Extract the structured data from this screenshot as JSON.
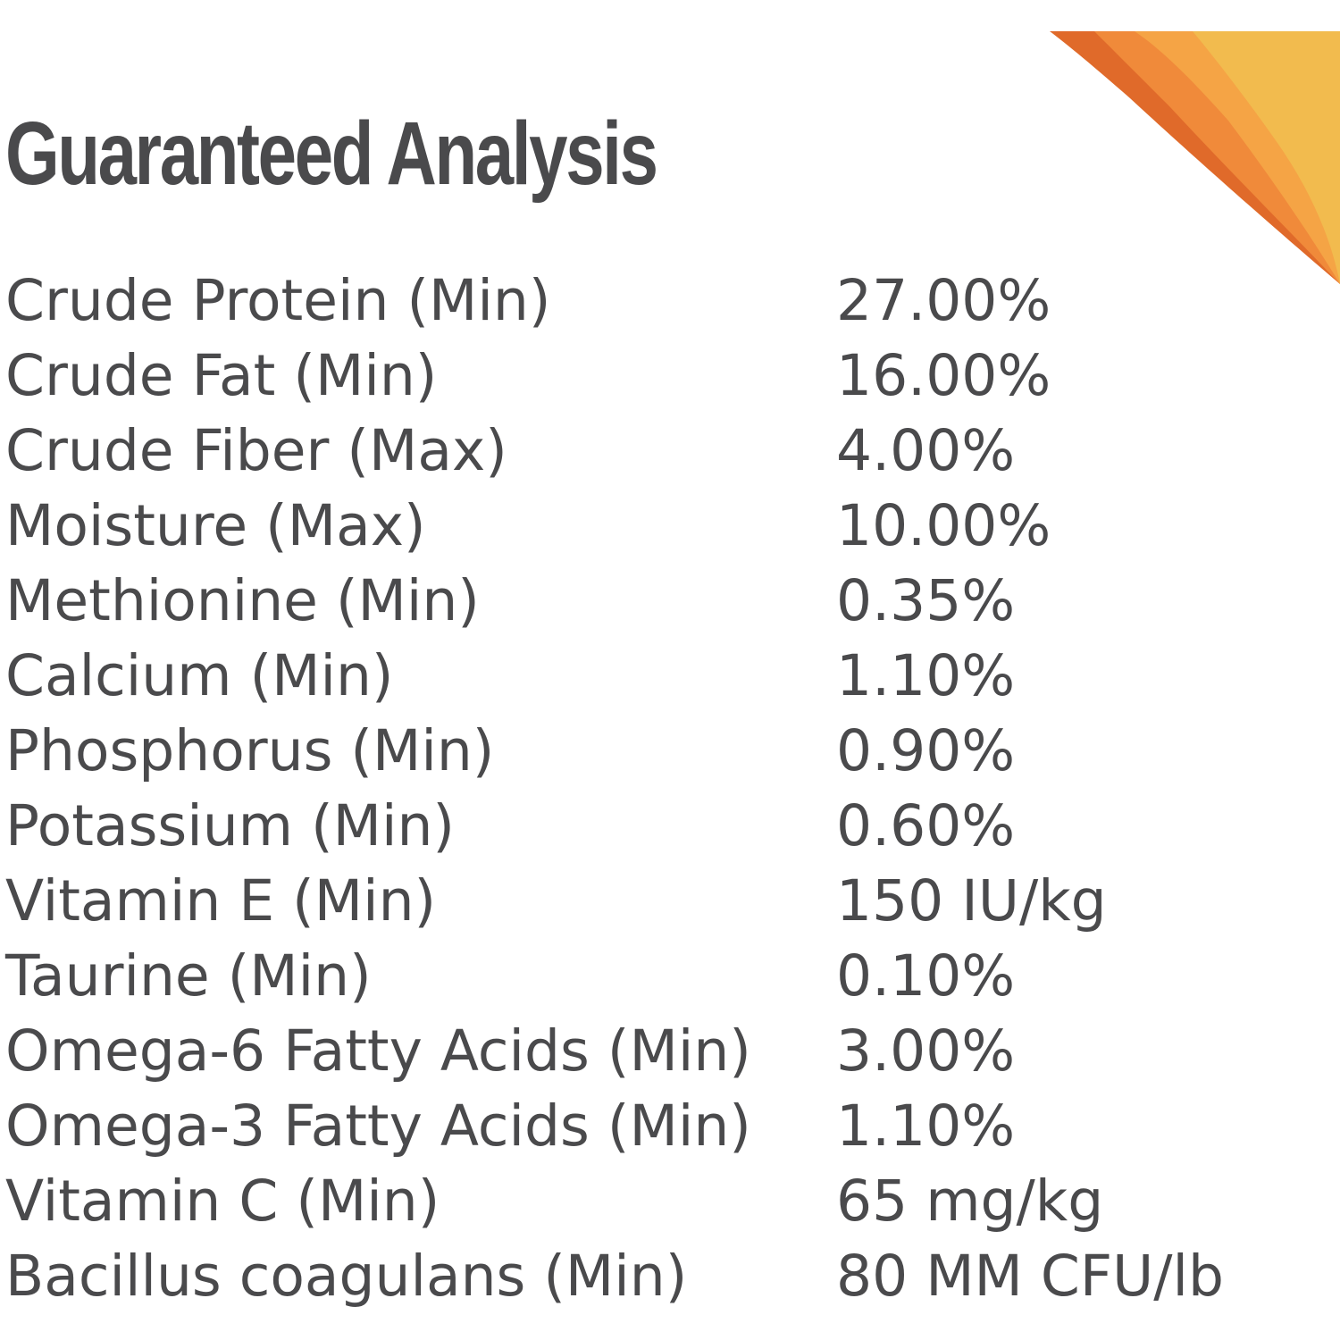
{
  "title": "Guaranteed Analysis",
  "analysis": [
    {
      "nutrient": "Crude Protein (Min)",
      "amount": "27.00%"
    },
    {
      "nutrient": "Crude Fat (Min)",
      "amount": "16.00%"
    },
    {
      "nutrient": "Crude Fiber (Max)",
      "amount": "4.00%"
    },
    {
      "nutrient": "Moisture (Max)",
      "amount": "10.00%"
    },
    {
      "nutrient": "Methionine (Min)",
      "amount": "0.35%"
    },
    {
      "nutrient": "Calcium (Min)",
      "amount": "1.10%"
    },
    {
      "nutrient": "Phosphorus (Min)",
      "amount": "0.90%"
    },
    {
      "nutrient": "Potassium (Min)",
      "amount": "0.60%"
    },
    {
      "nutrient": "Vitamin E (Min)",
      "amount": "150 IU/kg"
    },
    {
      "nutrient": "Taurine (Min)",
      "amount": "0.10%"
    },
    {
      "nutrient": "Omega-6 Fatty Acids (Min)",
      "amount": "3.00%"
    },
    {
      "nutrient": "Omega-3 Fatty Acids (Min)",
      "amount": "1.10%"
    },
    {
      "nutrient": "Vitamin C (Min)",
      "amount": "65 mg/kg"
    },
    {
      "nutrient": "Bacillus coagulans (Min)",
      "amount": "80 MM CFU/lb"
    }
  ],
  "colors": {
    "text": "#4a4a4c",
    "background": "#ffffff",
    "accent_dark_orange": "#e06a2a",
    "accent_orange": "#f08a3a",
    "accent_yellow": "#f2bb4e"
  }
}
